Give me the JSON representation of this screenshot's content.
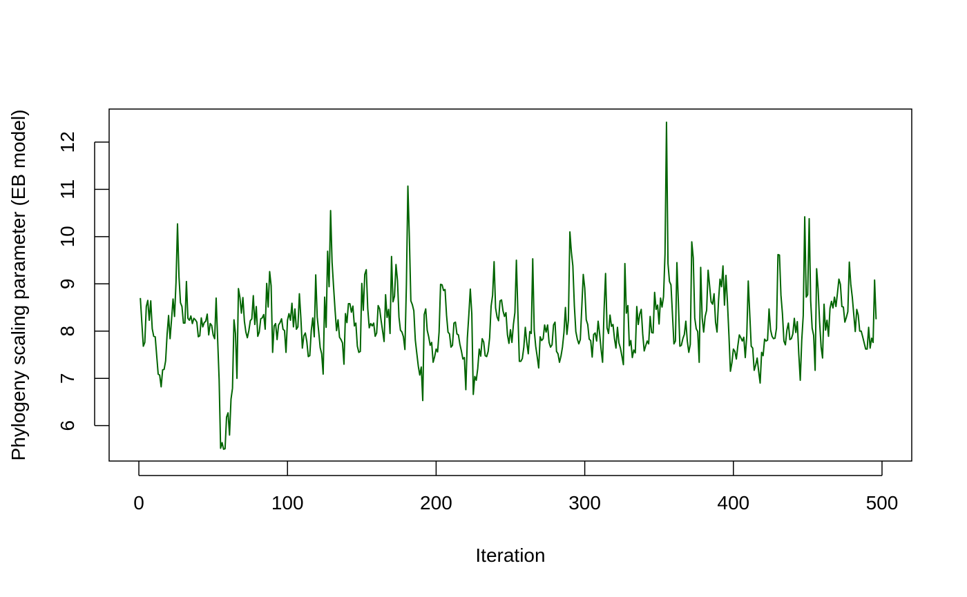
{
  "chart_data": {
    "type": "line",
    "title": "",
    "xlabel": "Iteration",
    "ylabel": "Phylogeny scaling parameter (EB model)",
    "xlim": [
      -20,
      520
    ],
    "ylim": [
      5.25,
      12.7
    ],
    "xticks": [
      0,
      100,
      200,
      300,
      400,
      500
    ],
    "yticks": [
      6,
      7,
      8,
      9,
      10,
      11,
      12
    ],
    "x_start": 1,
    "x_step": 1,
    "line_color": "#006400",
    "grid": false,
    "legend": "none",
    "series": [
      {
        "values": [
          8.7,
          8.18,
          7.68,
          7.76,
          8.52,
          8.65,
          8.23,
          8.64,
          8.05,
          7.89,
          7.88,
          7.48,
          7.09,
          7.07,
          6.82,
          7.18,
          7.19,
          7.37,
          7.93,
          8.33,
          7.84,
          8.25,
          8.68,
          8.31,
          9.03,
          10.27,
          9.15,
          8.6,
          8.52,
          8.17,
          8.17,
          9.05,
          8.27,
          8.23,
          8.32,
          8.16,
          8.27,
          8.24,
          8.19,
          7.88,
          7.9,
          8.28,
          8.09,
          8.18,
          8.21,
          8.36,
          7.92,
          8.16,
          8.12,
          7.92,
          7.84,
          8.7,
          7.83,
          6.98,
          5.52,
          5.64,
          5.5,
          5.51,
          6.18,
          6.27,
          5.8,
          6.56,
          6.79,
          8.24,
          7.95,
          7.0,
          8.9,
          8.71,
          8.38,
          8.71,
          8.21,
          7.98,
          7.86,
          8.01,
          8.22,
          8.26,
          8.75,
          8.14,
          8.52,
          7.89,
          7.98,
          8.26,
          8.28,
          8.35,
          8.04,
          9.01,
          8.51,
          9.26,
          8.96,
          7.55,
          8.11,
          8.16,
          7.82,
          8.13,
          8.18,
          8.26,
          8.04,
          8.01,
          7.55,
          8.23,
          8.37,
          8.23,
          8.59,
          8.09,
          8.47,
          8.04,
          8.09,
          8.79,
          8.28,
          7.64,
          7.9,
          7.96,
          7.78,
          7.46,
          7.48,
          8.01,
          8.28,
          7.88,
          9.19,
          8.3,
          7.99,
          7.65,
          7.52,
          7.09,
          8.72,
          8.08,
          9.69,
          8.94,
          10.55,
          9.46,
          8.94,
          8.45,
          8.01,
          8.24,
          7.87,
          7.82,
          7.75,
          7.3,
          8.37,
          8.18,
          8.58,
          8.58,
          8.4,
          8.53,
          8.11,
          8.17,
          7.68,
          7.55,
          7.57,
          9.01,
          8.44,
          9.2,
          9.3,
          8.48,
          8.07,
          8.16,
          8.11,
          8.17,
          7.89,
          7.96,
          8.54,
          8.47,
          8.22,
          8.0,
          7.78,
          8.77,
          8.29,
          8.46,
          7.95,
          9.58,
          8.62,
          8.74,
          9.41,
          9.07,
          8.3,
          8.02,
          7.98,
          7.88,
          7.61,
          8.98,
          11.07,
          9.98,
          8.64,
          8.56,
          8.43,
          7.81,
          7.53,
          7.26,
          7.07,
          7.24,
          6.53,
          8.35,
          8.47,
          8.02,
          7.88,
          7.7,
          7.76,
          7.34,
          7.46,
          7.62,
          7.56,
          7.98,
          8.99,
          8.98,
          8.86,
          8.88,
          8.34,
          7.98,
          7.94,
          7.66,
          7.7,
          8.17,
          8.19,
          7.94,
          7.92,
          7.72,
          7.58,
          7.41,
          7.44,
          6.76,
          7.85,
          8.34,
          8.89,
          8.37,
          6.66,
          7.04,
          6.96,
          7.21,
          7.62,
          7.47,
          7.84,
          7.77,
          7.48,
          7.46,
          7.57,
          7.86,
          8.53,
          8.76,
          9.47,
          8.49,
          8.3,
          8.22,
          8.64,
          8.66,
          8.43,
          8.31,
          8.39,
          7.92,
          7.74,
          8.03,
          7.76,
          8.14,
          8.39,
          9.5,
          8.4,
          7.36,
          7.36,
          7.42,
          7.66,
          8.08,
          7.76,
          7.52,
          7.99,
          7.95,
          9.53,
          8.02,
          7.68,
          7.46,
          7.22,
          7.88,
          7.8,
          7.84,
          8.13,
          7.98,
          8.13,
          7.76,
          7.66,
          7.71,
          8.13,
          8.19,
          7.57,
          7.52,
          7.34,
          7.47,
          7.66,
          7.97,
          8.5,
          7.93,
          8.23,
          10.1,
          9.67,
          9.38,
          8.54,
          7.99,
          7.83,
          7.73,
          7.82,
          8.5,
          9.2,
          8.91,
          8.24,
          8.14,
          7.83,
          7.8,
          7.45,
          7.93,
          7.96,
          7.79,
          8.21,
          7.95,
          7.61,
          7.34,
          8.45,
          9.22,
          8.07,
          7.95,
          8.34,
          8.1,
          8.14,
          7.84,
          7.64,
          8.08,
          7.75,
          7.64,
          7.47,
          7.29,
          9.43,
          8.38,
          8.54,
          7.69,
          7.8,
          7.44,
          7.6,
          7.54,
          8.52,
          8.14,
          8.36,
          8.46,
          7.94,
          7.58,
          7.69,
          7.79,
          7.73,
          8.31,
          7.97,
          7.96,
          8.82,
          8.46,
          8.55,
          8.15,
          8.7,
          8.51,
          8.73,
          9.63,
          12.42,
          9.43,
          9.05,
          8.98,
          8.36,
          7.73,
          7.79,
          9.45,
          8.6,
          7.68,
          7.7,
          7.84,
          7.93,
          8.21,
          7.79,
          7.55,
          7.72,
          9.89,
          9.55,
          8.28,
          8.05,
          7.99,
          7.34,
          9.35,
          8.28,
          7.98,
          8.31,
          8.44,
          9.29,
          8.96,
          8.62,
          8.57,
          8.79,
          8.19,
          7.98,
          8.64,
          9.1,
          8.94,
          9.38,
          8.55,
          9.18,
          8.61,
          7.92,
          7.15,
          7.33,
          7.62,
          7.57,
          7.41,
          7.69,
          7.92,
          7.86,
          7.79,
          7.87,
          7.44,
          7.9,
          9.06,
          8.37,
          7.68,
          7.64,
          7.17,
          7.28,
          7.43,
          7.15,
          6.9,
          7.55,
          7.48,
          7.83,
          7.79,
          7.81,
          8.47,
          8.03,
          7.89,
          7.84,
          7.85,
          8.06,
          9.62,
          9.61,
          8.76,
          8.37,
          7.79,
          7.71,
          8.02,
          8.17,
          7.82,
          7.84,
          7.94,
          8.27,
          7.97,
          8.2,
          7.52,
          6.96,
          7.81,
          8.33,
          10.42,
          8.72,
          8.77,
          10.38,
          8.64,
          8.06,
          7.91,
          7.17,
          9.32,
          8.89,
          8.2,
          7.67,
          7.43,
          8.57,
          8.02,
          8.23,
          7.89,
          8.48,
          8.63,
          8.49,
          8.72,
          8.52,
          8.8,
          9.1,
          8.99,
          8.52,
          8.51,
          8.19,
          8.29,
          8.41,
          9.46,
          8.99,
          8.72,
          8.35,
          7.99,
          8.46,
          8.34,
          8.0,
          8.0,
          7.88,
          7.75,
          7.62,
          7.62,
          8.08,
          7.64,
          7.85,
          7.76,
          9.08,
          8.25
        ]
      }
    ]
  }
}
